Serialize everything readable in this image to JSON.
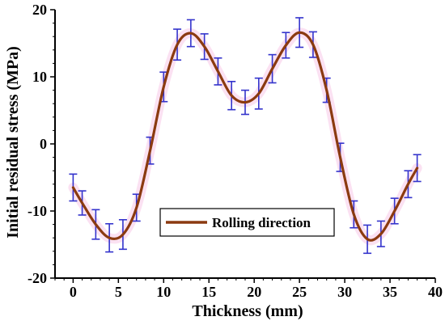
{
  "chart_data": {
    "type": "line",
    "title": "",
    "xlabel": "Thickness (mm)",
    "ylabel": "Initial residual stress (MPa)",
    "xlim": [
      -2,
      40
    ],
    "ylim": [
      -20,
      20
    ],
    "x_ticks": [
      0,
      5,
      10,
      15,
      20,
      25,
      30,
      35,
      40
    ],
    "y_ticks": [
      -20,
      -10,
      0,
      10,
      20
    ],
    "grid": false,
    "legend_position": "center",
    "series": [
      {
        "name": "Rolling direction",
        "color": "#8B3A10",
        "error_bar_color": "#3333CC",
        "x": [
          0,
          1,
          2.5,
          4,
          5.5,
          7,
          8.5,
          10,
          11.5,
          13,
          14.5,
          16,
          17.5,
          19,
          20.5,
          22,
          23.5,
          25,
          26.5,
          28,
          29.5,
          31,
          32.5,
          34,
          35.5,
          37,
          38
        ],
        "y": [
          -6.5,
          -8.8,
          -12.0,
          -14.0,
          -13.5,
          -9.5,
          -1.0,
          8.5,
          14.8,
          16.5,
          14.5,
          10.8,
          7.2,
          6.2,
          7.5,
          11.2,
          14.7,
          16.6,
          14.8,
          8.0,
          -2.0,
          -10.5,
          -14.2,
          -13.4,
          -10.0,
          -6.0,
          -3.6
        ],
        "error": [
          2.0,
          1.8,
          2.2,
          2.1,
          2.2,
          2.0,
          2.0,
          2.2,
          2.3,
          2.0,
          1.9,
          2.0,
          2.1,
          1.8,
          2.3,
          2.1,
          1.9,
          2.2,
          1.9,
          1.8,
          2.1,
          2.0,
          2.1,
          1.9,
          1.9,
          2.0,
          2.0
        ]
      }
    ]
  },
  "colors": {
    "axis": "#000000",
    "glow": "#F7C8E8"
  }
}
